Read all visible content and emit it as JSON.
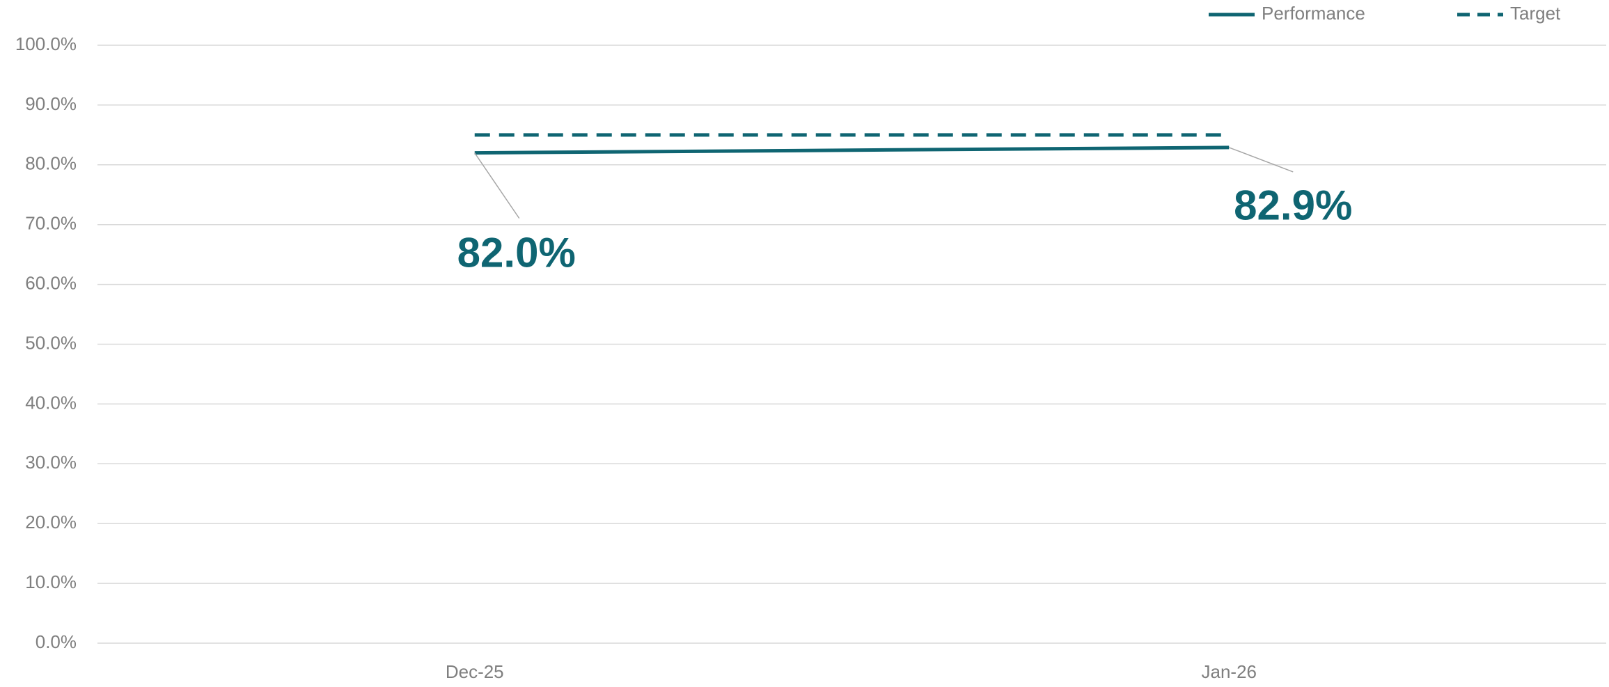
{
  "chart_data": {
    "type": "line",
    "categories": [
      "Dec-25",
      "Jan-26"
    ],
    "series": [
      {
        "name": "Performance",
        "color": "#0f6572",
        "style": "solid",
        "values": [
          82.0,
          82.9
        ],
        "value_labels": [
          "82.0%",
          "82.9%"
        ]
      },
      {
        "name": "Target",
        "color": "#0f6572",
        "style": "dashed",
        "values": [
          85,
          85
        ]
      }
    ],
    "ylim": [
      0,
      100
    ],
    "yticks": [
      {
        "value": 0,
        "label": "0.0%"
      },
      {
        "value": 10,
        "label": "10.0%"
      },
      {
        "value": 20,
        "label": "20.0%"
      },
      {
        "value": 30,
        "label": "30.0%"
      },
      {
        "value": 40,
        "label": "40.0%"
      },
      {
        "value": 50,
        "label": "50.0%"
      },
      {
        "value": 60,
        "label": "60.0%"
      },
      {
        "value": 70,
        "label": "70.0%"
      },
      {
        "value": 80,
        "label": "80.0%"
      },
      {
        "value": 90,
        "label": "90.0%"
      },
      {
        "value": 100,
        "label": "100.0%"
      }
    ],
    "grid": true,
    "legend": "top-right"
  }
}
